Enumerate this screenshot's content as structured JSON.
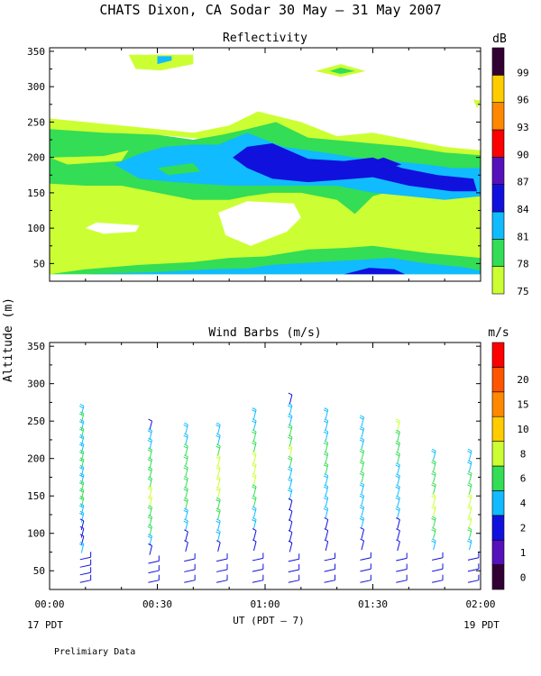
{
  "header": {
    "title": "CHATS Dixon, CA  Sodar  30 May – 31 May 2007"
  },
  "footer": {
    "x_axis_label": "UT  (PDT – 7)",
    "left_date": "17 PDT",
    "right_date": "19 PDT",
    "note": "Prelimiary Data"
  },
  "y_axis_label": "Altitude (m)",
  "colors": {
    "white": "#ffffff",
    "yellowgreen": "#ccff33",
    "green": "#33dd55",
    "cyan": "#11bbff",
    "blue": "#1111dd",
    "purple": "#5511bb",
    "darkpurple": "#330033",
    "red": "#ff0000",
    "orange": "#ff8800",
    "gold": "#ffcc00"
  },
  "chart_data": [
    {
      "type": "heatmap",
      "title": "Reflectivity",
      "units_label": "dB",
      "x_ticks": [
        "00:00",
        "00:30",
        "01:00",
        "01:30",
        "02:00"
      ],
      "x_range_minutes": [
        0,
        120
      ],
      "ylim": [
        25,
        355
      ],
      "y_ticks": [
        50,
        100,
        150,
        200,
        250,
        300,
        350
      ],
      "colorbar": {
        "labels": [
          "75",
          "78",
          "81",
          "84",
          "87",
          "90",
          "93",
          "96",
          "99"
        ],
        "colors": [
          "#ccff33",
          "#33dd55",
          "#11bbff",
          "#1111dd",
          "#5511bb",
          "#ff0000",
          "#ff8800",
          "#ffcc00",
          "#330033"
        ]
      },
      "regions": [
        {
          "level": "75",
          "points": [
            [
              0,
              255
            ],
            [
              10,
              250
            ],
            [
              20,
              245
            ],
            [
              30,
              240
            ],
            [
              40,
              235
            ],
            [
              50,
              245
            ],
            [
              58,
              265
            ],
            [
              70,
              250
            ],
            [
              80,
              230
            ],
            [
              90,
              235
            ],
            [
              100,
              225
            ],
            [
              110,
              215
            ],
            [
              120,
              210
            ],
            [
              120,
              35
            ],
            [
              0,
              35
            ]
          ]
        },
        {
          "level": "white",
          "points": [
            [
              0,
              220
            ],
            [
              10,
              210
            ],
            [
              20,
              225
            ],
            [
              30,
              232
            ],
            [
              45,
              225
            ],
            [
              50,
              230
            ],
            [
              40,
              212
            ],
            [
              30,
              195
            ],
            [
              10,
              190
            ],
            [
              0,
              200
            ]
          ]
        },
        {
          "level": "white",
          "points": [
            [
              13,
              108
            ],
            [
              25,
              104
            ],
            [
              24,
              95
            ],
            [
              15,
              92
            ],
            [
              10,
              100
            ]
          ]
        },
        {
          "level": "white",
          "points": [
            [
              47,
              122
            ],
            [
              55,
              138
            ],
            [
              68,
              135
            ],
            [
              70,
              115
            ],
            [
              66,
              95
            ],
            [
              56,
              75
            ],
            [
              49,
              90
            ]
          ]
        },
        {
          "level": "78",
          "points": [
            [
              0,
              240
            ],
            [
              15,
              235
            ],
            [
              30,
              232
            ],
            [
              40,
              225
            ],
            [
              48,
              232
            ],
            [
              55,
              240
            ],
            [
              63,
              250
            ],
            [
              72,
              228
            ],
            [
              85,
              222
            ],
            [
              100,
              215
            ],
            [
              110,
              207
            ],
            [
              120,
              203
            ],
            [
              120,
              170
            ],
            [
              110,
              170
            ],
            [
              100,
              160
            ],
            [
              90,
              145
            ],
            [
              85,
              120
            ],
            [
              80,
              140
            ],
            [
              70,
              150
            ],
            [
              62,
              150
            ],
            [
              55,
              145
            ],
            [
              50,
              140
            ],
            [
              40,
              140
            ],
            [
              30,
              150
            ],
            [
              20,
              160
            ],
            [
              10,
              160
            ],
            [
              0,
              163
            ]
          ]
        },
        {
          "level": "75",
          "points": [
            [
              0,
              200
            ],
            [
              15,
              202
            ],
            [
              22,
              210
            ],
            [
              20,
              195
            ],
            [
              5,
              190
            ]
          ]
        },
        {
          "level": "75",
          "points": [
            [
              35,
              195
            ],
            [
              45,
              210
            ],
            [
              50,
              195
            ],
            [
              45,
              185
            ]
          ]
        },
        {
          "level": "81",
          "points": [
            [
              18,
              190
            ],
            [
              25,
              205
            ],
            [
              32,
              215
            ],
            [
              40,
              218
            ],
            [
              47,
              218
            ],
            [
              55,
              235
            ],
            [
              65,
              215
            ],
            [
              75,
              208
            ],
            [
              85,
              200
            ],
            [
              95,
              195
            ],
            [
              105,
              190
            ],
            [
              112,
              185
            ],
            [
              120,
              185
            ],
            [
              120,
              145
            ],
            [
              110,
              140
            ],
            [
              100,
              145
            ],
            [
              90,
              150
            ],
            [
              80,
              160
            ],
            [
              70,
              160
            ],
            [
              60,
              160
            ],
            [
              50,
              160
            ],
            [
              35,
              165
            ],
            [
              25,
              170
            ]
          ]
        },
        {
          "level": "78",
          "points": [
            [
              30,
              185
            ],
            [
              40,
              192
            ],
            [
              42,
              180
            ],
            [
              33,
              175
            ]
          ]
        },
        {
          "level": "84",
          "points": [
            [
              51,
              200
            ],
            [
              55,
              215
            ],
            [
              62,
              220
            ],
            [
              72,
              198
            ],
            [
              82,
              195
            ],
            [
              90,
              200
            ],
            [
              98,
              185
            ],
            [
              108,
              175
            ],
            [
              118,
              170
            ],
            [
              119,
              152
            ],
            [
              112,
              152
            ],
            [
              100,
              160
            ],
            [
              90,
              172
            ],
            [
              80,
              168
            ],
            [
              72,
              165
            ],
            [
              62,
              170
            ],
            [
              55,
              185
            ]
          ]
        },
        {
          "level": "84",
          "points": [
            [
              87,
              190
            ],
            [
              93,
              200
            ],
            [
              98,
              190
            ],
            [
              92,
              182
            ]
          ]
        },
        {
          "level": "78",
          "points": [
            [
              0,
              35
            ],
            [
              10,
              42
            ],
            [
              25,
              48
            ],
            [
              40,
              52
            ],
            [
              50,
              58
            ],
            [
              60,
              60
            ],
            [
              72,
              70
            ],
            [
              82,
              72
            ],
            [
              90,
              75
            ],
            [
              105,
              65
            ],
            [
              120,
              58
            ],
            [
              120,
              35
            ]
          ]
        },
        {
          "level": "81",
          "points": [
            [
              10,
              35
            ],
            [
              30,
              38
            ],
            [
              45,
              42
            ],
            [
              55,
              43
            ],
            [
              62,
              48
            ],
            [
              75,
              52
            ],
            [
              85,
              55
            ],
            [
              95,
              58
            ],
            [
              105,
              50
            ],
            [
              115,
              45
            ],
            [
              120,
              40
            ],
            [
              120,
              35
            ]
          ]
        },
        {
          "level": "84",
          "points": [
            [
              82,
              35
            ],
            [
              89,
              44
            ],
            [
              96,
              42
            ],
            [
              99,
              35
            ]
          ]
        },
        {
          "level": "75",
          "points": [
            [
              22,
              345
            ],
            [
              24,
              325
            ],
            [
              31,
              323
            ],
            [
              40,
              332
            ],
            [
              40,
              345
            ]
          ]
        },
        {
          "level": "81",
          "points": [
            [
              30,
              343
            ],
            [
              30,
              332
            ],
            [
              34,
              337
            ],
            [
              34,
              343
            ]
          ]
        },
        {
          "level": "75",
          "points": [
            [
              74,
              322
            ],
            [
              81,
              332
            ],
            [
              88,
              322
            ],
            [
              81,
              314
            ]
          ]
        },
        {
          "level": "78",
          "points": [
            [
              78,
              322
            ],
            [
              81,
              327
            ],
            [
              85,
              322
            ],
            [
              81,
              318
            ]
          ]
        },
        {
          "level": "75",
          "points": [
            [
              119,
              270
            ],
            [
              120,
              280
            ],
            [
              118,
              282
            ]
          ]
        }
      ]
    },
    {
      "type": "scatter",
      "title": "Wind Barbs (m/s)",
      "units_label": "m/s",
      "x_ticks": [
        "00:00",
        "00:30",
        "01:00",
        "01:30",
        "02:00"
      ],
      "x_range_minutes": [
        0,
        120
      ],
      "ylim": [
        25,
        355
      ],
      "y_ticks": [
        50,
        100,
        150,
        200,
        250,
        300,
        350
      ],
      "colorbar": {
        "labels": [
          "0",
          "1",
          "2",
          "4",
          "6",
          "8",
          "10",
          "15",
          "20"
        ],
        "colors": [
          "#330033",
          "#5511bb",
          "#1111dd",
          "#11bbff",
          "#33dd55",
          "#ccff33",
          "#ffcc00",
          "#ff8800",
          "#ff5500",
          "#ff0000"
        ]
      },
      "columns": [
        {
          "time": 9,
          "top": 260,
          "speeds": [
            4,
            6,
            5,
            6,
            5,
            4,
            6,
            6,
            5,
            5,
            6,
            6,
            6,
            5,
            4,
            3,
            3,
            3,
            4,
            3,
            2,
            2,
            3
          ]
        },
        {
          "time": 28,
          "top": 240,
          "speeds": [
            3,
            5,
            5,
            6,
            6,
            7,
            7,
            8,
            8,
            7,
            6,
            6,
            4,
            3,
            2,
            2,
            2
          ]
        },
        {
          "time": 38,
          "top": 235,
          "speeds": [
            4,
            5,
            6,
            6,
            6,
            7,
            7,
            6,
            5,
            4,
            3,
            3,
            2,
            2,
            2
          ]
        },
        {
          "time": 47,
          "top": 235,
          "speeds": [
            4,
            5,
            6,
            8,
            9,
            8,
            8,
            7,
            6,
            5,
            4,
            3,
            2,
            2,
            2
          ]
        },
        {
          "time": 57,
          "top": 255,
          "speeds": [
            4,
            5,
            6,
            7,
            8,
            8,
            8,
            7,
            6,
            5,
            4,
            3,
            3,
            3,
            2,
            2
          ]
        },
        {
          "time": 67,
          "top": 275,
          "speeds": [
            3,
            4,
            5,
            6,
            7,
            8,
            6,
            5,
            4,
            4,
            3,
            3,
            3,
            3,
            2,
            2,
            2,
            2
          ]
        },
        {
          "time": 77,
          "top": 255,
          "speeds": [
            4,
            4,
            5,
            6,
            6,
            6,
            5,
            5,
            4,
            4,
            3,
            3,
            3,
            3,
            2,
            2
          ]
        },
        {
          "time": 87,
          "top": 245,
          "speeds": [
            4,
            5,
            5,
            6,
            6,
            6,
            5,
            5,
            4,
            4,
            3,
            3,
            3,
            2,
            2
          ]
        },
        {
          "time": 97,
          "top": 240,
          "speeds": [
            8,
            6,
            6,
            6,
            5,
            5,
            5,
            4,
            4,
            3,
            3,
            3,
            2,
            2,
            2
          ]
        },
        {
          "time": 107,
          "top": 200,
          "speeds": [
            5,
            6,
            6,
            7,
            8,
            8,
            7,
            6,
            4,
            3,
            3,
            2
          ]
        },
        {
          "time": 117,
          "top": 200,
          "speeds": [
            4,
            5,
            6,
            7,
            8,
            9,
            8,
            7,
            5,
            3,
            3,
            2
          ]
        }
      ]
    }
  ]
}
